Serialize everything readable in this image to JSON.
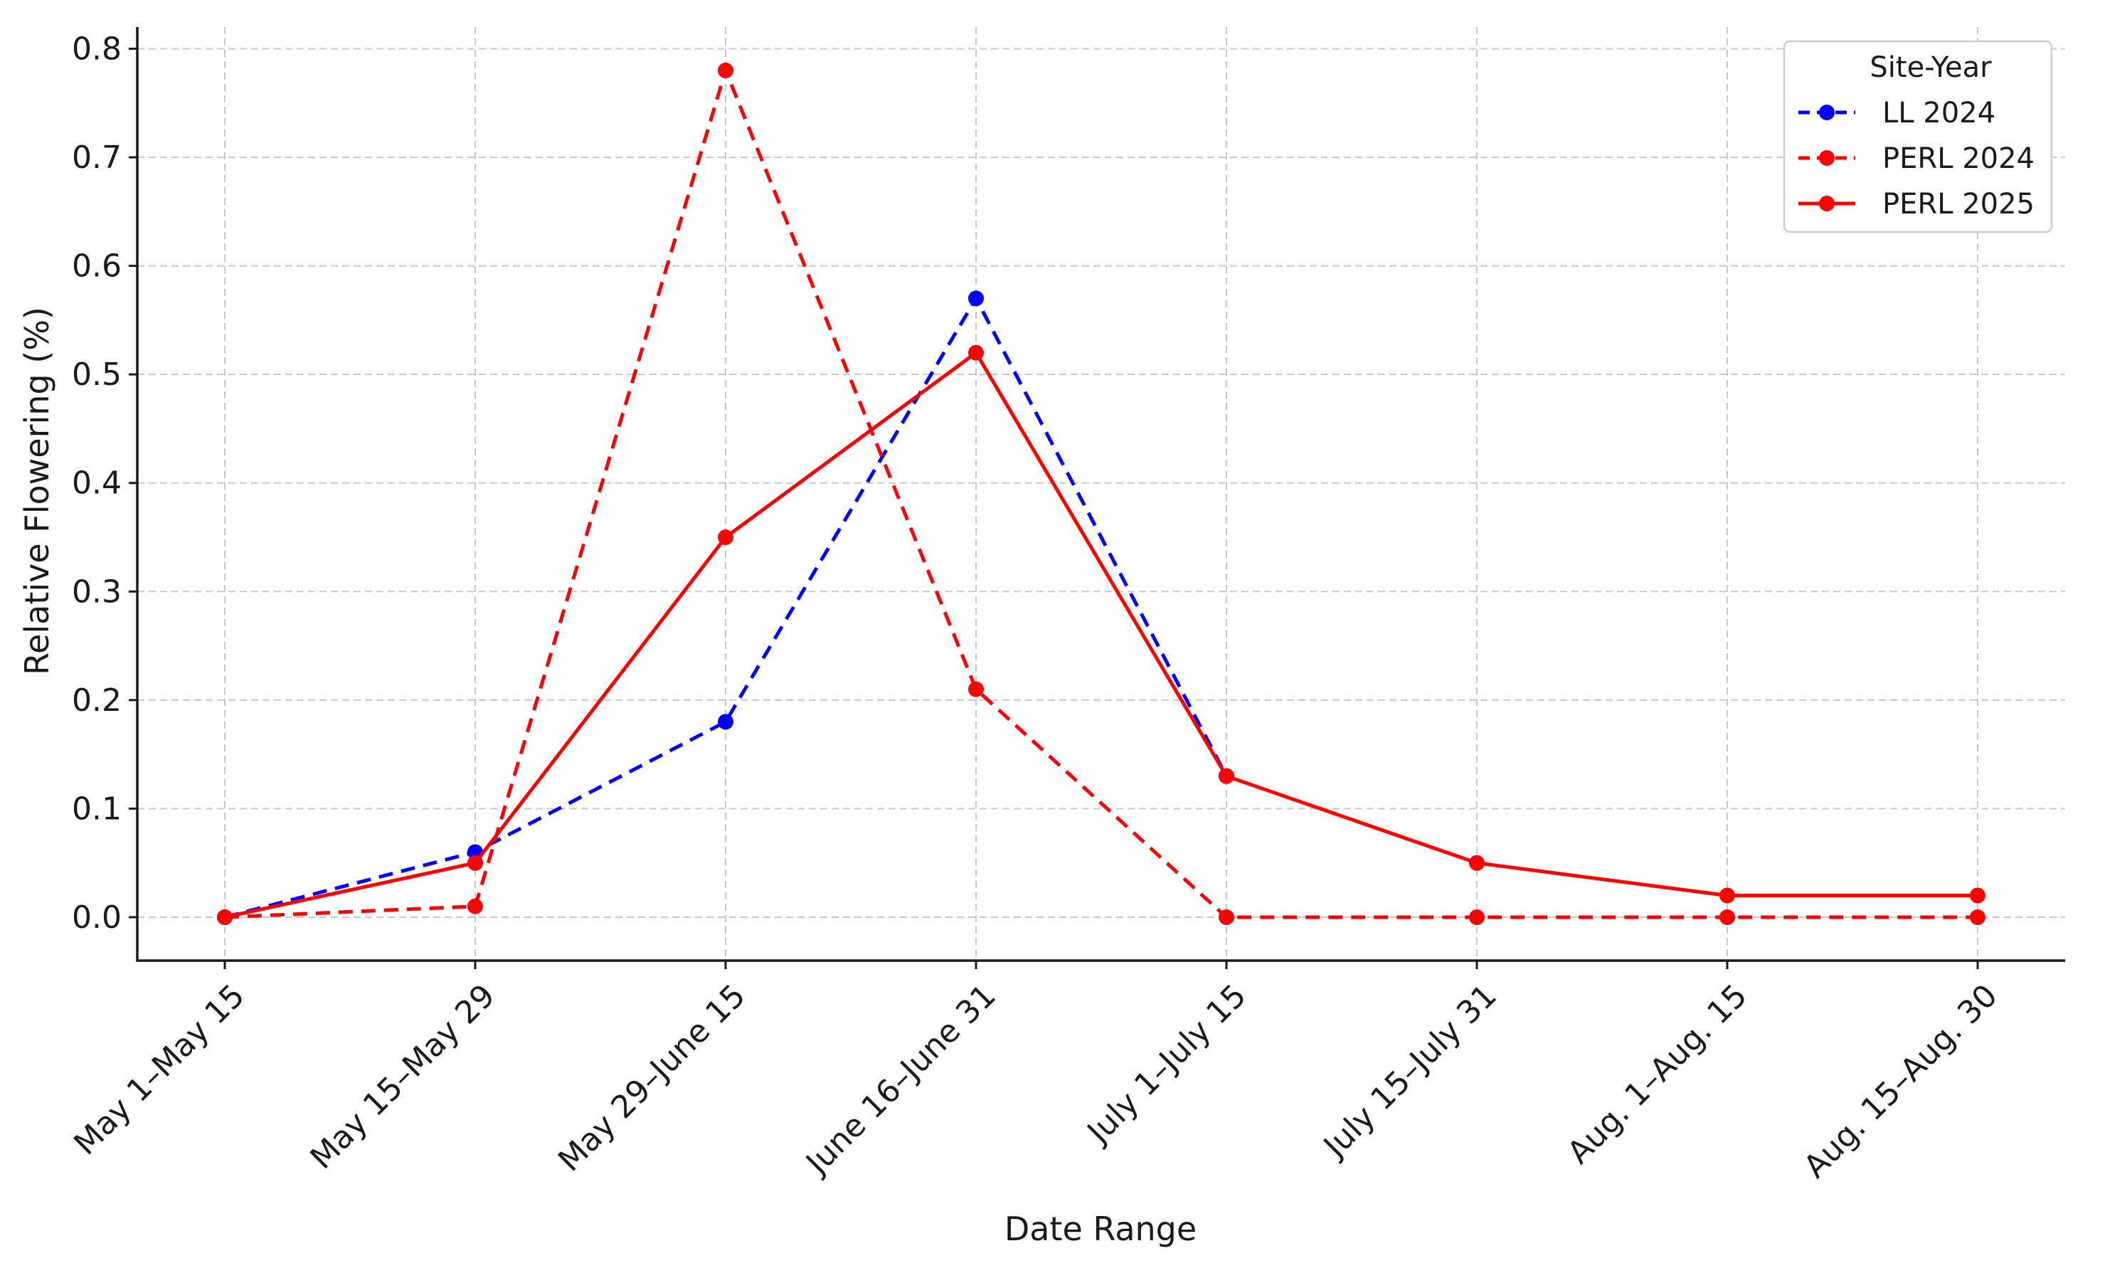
{
  "chart_data": {
    "type": "line",
    "title": "",
    "xlabel": "Date Range",
    "ylabel": "Relative Flowering (%)",
    "categories": [
      "May 1–May 15",
      "May 15–May 29",
      "May 29–June 15",
      "June 16–June 31",
      "July 1–July 15",
      "July 15–July 31",
      "Aug. 1–Aug. 15",
      "Aug. 15–Aug. 30"
    ],
    "ylim": [
      -0.04,
      0.82
    ],
    "yticks": [
      0.0,
      0.1,
      0.2,
      0.3,
      0.4,
      0.5,
      0.6,
      0.7,
      0.8
    ],
    "ytick_labels": [
      "0.0",
      "0.1",
      "0.2",
      "0.3",
      "0.4",
      "0.5",
      "0.6",
      "0.7",
      "0.8"
    ],
    "grid": true,
    "legend": {
      "title": "Site-Year",
      "placement": "top-right"
    },
    "series": [
      {
        "name": "LL 2024",
        "color": "#0000ff",
        "line_style": "dashed",
        "marker": "circle",
        "values": [
          0.0,
          0.06,
          0.18,
          0.57,
          0.13,
          null,
          null,
          null
        ]
      },
      {
        "name": "PERL 2024",
        "color": "#ff0000",
        "line_style": "dashed",
        "marker": "circle",
        "values": [
          0.0,
          0.01,
          0.78,
          0.21,
          0.0,
          0.0,
          0.0,
          0.0
        ]
      },
      {
        "name": "PERL 2025",
        "color": "#ff0000",
        "line_style": "solid",
        "marker": "circle",
        "values": [
          0.0,
          0.05,
          0.35,
          0.52,
          0.13,
          0.05,
          0.02,
          0.02
        ]
      }
    ]
  }
}
